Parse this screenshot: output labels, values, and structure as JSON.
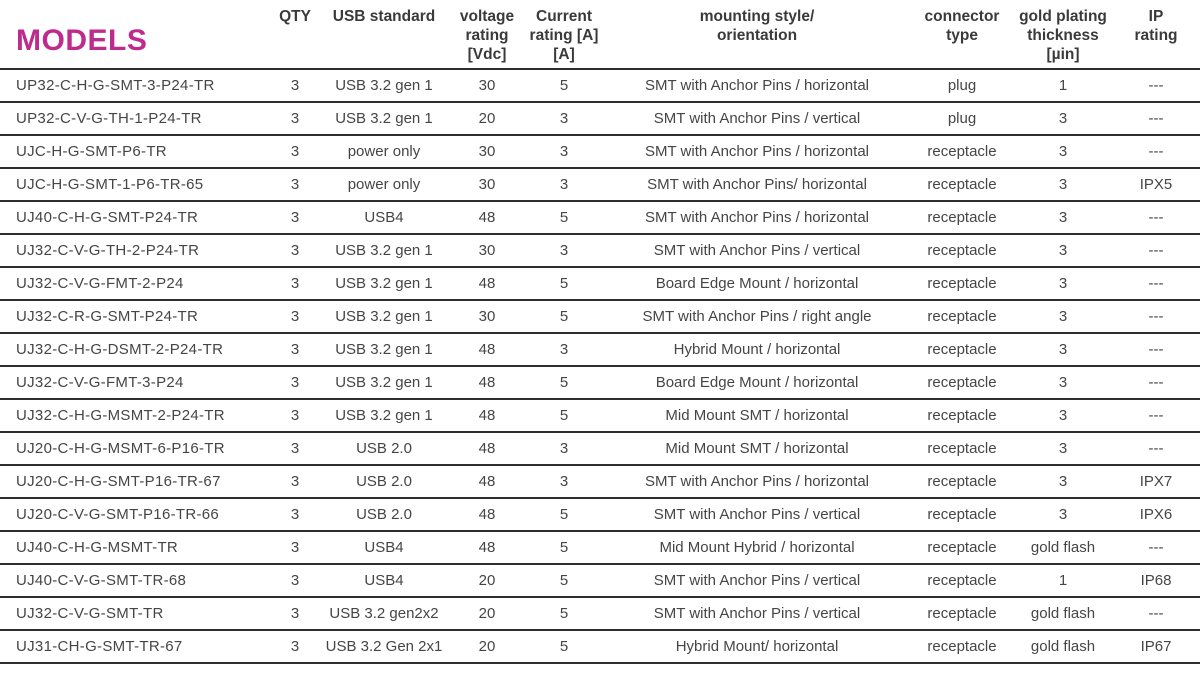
{
  "page": {
    "title": "MODELS",
    "accent_color": "#bf2b8d",
    "text_color": "#454545",
    "line_color": "#2e2e2e"
  },
  "table": {
    "headers": {
      "model": "MODELS",
      "qty": "QTY",
      "usb": "USB standard",
      "voltage": "voltage\nrating\n[Vdc]",
      "current": "Current\nrating [A]\n[A]",
      "mounting": "mounting style/\norientation",
      "connector": "connector\ntype",
      "gold": "gold plating\nthickness\n[µin]",
      "ip": "IP\nrating"
    },
    "rows": [
      {
        "model": "UP32-C-H-G-SMT-3-P24-TR",
        "qty": "3",
        "usb": "USB 3.2 gen 1",
        "voltage": "30",
        "current": "5",
        "mounting": "SMT with Anchor Pins / horizontal",
        "connector": "plug",
        "gold": "1",
        "ip": "---"
      },
      {
        "model": "UP32-C-V-G-TH-1-P24-TR",
        "qty": "3",
        "usb": "USB 3.2 gen 1",
        "voltage": "20",
        "current": "3",
        "mounting": "SMT with Anchor Pins / vertical",
        "connector": "plug",
        "gold": "3",
        "ip": "---"
      },
      {
        "model": "UJC-H-G-SMT-P6-TR",
        "qty": "3",
        "usb": "power only",
        "voltage": "30",
        "current": "3",
        "mounting": "SMT with Anchor Pins / horizontal",
        "connector": "receptacle",
        "gold": "3",
        "ip": "---"
      },
      {
        "model": "UJC-H-G-SMT-1-P6-TR-65",
        "qty": "3",
        "usb": "power only",
        "voltage": "30",
        "current": "3",
        "mounting": "SMT with Anchor Pins/ horizontal",
        "connector": "receptacle",
        "gold": "3",
        "ip": "IPX5"
      },
      {
        "model": "UJ40-C-H-G-SMT-P24-TR",
        "qty": "3",
        "usb": "USB4",
        "voltage": "48",
        "current": "5",
        "mounting": "SMT with Anchor Pins / horizontal",
        "connector": "receptacle",
        "gold": "3",
        "ip": "---"
      },
      {
        "model": "UJ32-C-V-G-TH-2-P24-TR",
        "qty": "3",
        "usb": "USB 3.2 gen 1",
        "voltage": "30",
        "current": "3",
        "mounting": "SMT with Anchor Pins / vertical",
        "connector": "receptacle",
        "gold": "3",
        "ip": "---"
      },
      {
        "model": "UJ32-C-V-G-FMT-2-P24",
        "qty": "3",
        "usb": "USB 3.2 gen 1",
        "voltage": "48",
        "current": "5",
        "mounting": "Board Edge Mount / horizontal",
        "connector": "receptacle",
        "gold": "3",
        "ip": "---"
      },
      {
        "model": "UJ32-C-R-G-SMT-P24-TR",
        "qty": "3",
        "usb": "USB 3.2 gen 1",
        "voltage": "30",
        "current": "5",
        "mounting": "SMT with Anchor Pins / right angle",
        "connector": "receptacle",
        "gold": "3",
        "ip": "---"
      },
      {
        "model": "UJ32-C-H-G-DSMT-2-P24-TR",
        "qty": "3",
        "usb": "USB 3.2 gen 1",
        "voltage": "48",
        "current": "3",
        "mounting": "Hybrid Mount / horizontal",
        "connector": "receptacle",
        "gold": "3",
        "ip": "---"
      },
      {
        "model": "UJ32-C-V-G-FMT-3-P24",
        "qty": "3",
        "usb": "USB 3.2 gen 1",
        "voltage": "48",
        "current": "5",
        "mounting": "Board Edge Mount / horizontal",
        "connector": "receptacle",
        "gold": "3",
        "ip": "---"
      },
      {
        "model": "UJ32-C-H-G-MSMT-2-P24-TR",
        "qty": "3",
        "usb": "USB 3.2 gen 1",
        "voltage": "48",
        "current": "5",
        "mounting": "Mid Mount SMT / horizontal",
        "connector": "receptacle",
        "gold": "3",
        "ip": "---"
      },
      {
        "model": "UJ20-C-H-G-MSMT-6-P16-TR",
        "qty": "3",
        "usb": "USB 2.0",
        "voltage": "48",
        "current": "3",
        "mounting": "Mid Mount SMT / horizontal",
        "connector": "receptacle",
        "gold": "3",
        "ip": "---"
      },
      {
        "model": "UJ20-C-H-G-SMT-P16-TR-67",
        "qty": "3",
        "usb": "USB 2.0",
        "voltage": "48",
        "current": "3",
        "mounting": "SMT with Anchor Pins / horizontal",
        "connector": "receptacle",
        "gold": "3",
        "ip": "IPX7"
      },
      {
        "model": "UJ20-C-V-G-SMT-P16-TR-66",
        "qty": "3",
        "usb": "USB 2.0",
        "voltage": "48",
        "current": "5",
        "mounting": "SMT with Anchor Pins / vertical",
        "connector": "receptacle",
        "gold": "3",
        "ip": "IPX6"
      },
      {
        "model": "UJ40-C-H-G-MSMT-TR",
        "qty": "3",
        "usb": "USB4",
        "voltage": "48",
        "current": "5",
        "mounting": "Mid Mount Hybrid / horizontal",
        "connector": "receptacle",
        "gold": "gold flash",
        "ip": "---"
      },
      {
        "model": "UJ40-C-V-G-SMT-TR-68",
        "qty": "3",
        "usb": "USB4",
        "voltage": "20",
        "current": "5",
        "mounting": "SMT with Anchor Pins / vertical",
        "connector": "receptacle",
        "gold": "1",
        "ip": "IP68"
      },
      {
        "model": "UJ32-C-V-G-SMT-TR",
        "qty": "3",
        "usb": "USB 3.2 gen2x2",
        "voltage": "20",
        "current": "5",
        "mounting": "SMT with Anchor Pins / vertical",
        "connector": "receptacle",
        "gold": "gold flash",
        "ip": "---"
      },
      {
        "model": "UJ31-CH-G-SMT-TR-67",
        "qty": "3",
        "usb": "USB 3.2 Gen 2x1",
        "voltage": "20",
        "current": "5",
        "mounting": "Hybrid Mount/ horizontal",
        "connector": "receptacle",
        "gold": "gold flash",
        "ip": "IP67"
      }
    ]
  }
}
